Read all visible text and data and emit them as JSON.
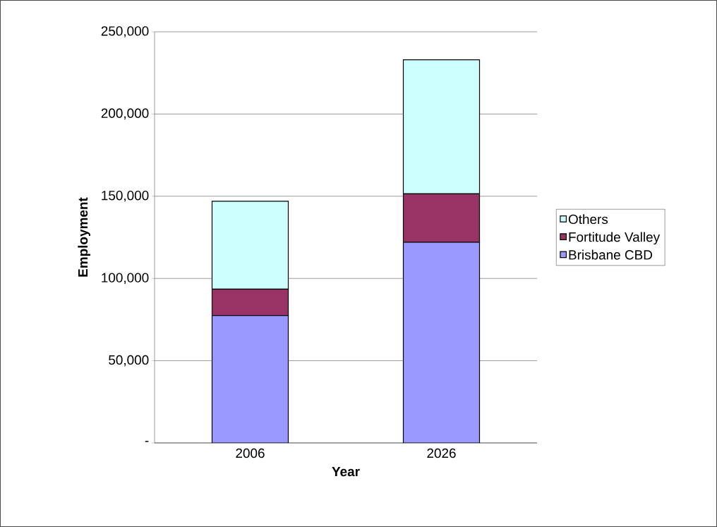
{
  "chart_data": {
    "type": "bar",
    "stacked": true,
    "xlabel": "Year",
    "ylabel": "Employment",
    "categories": [
      "2006",
      "2026"
    ],
    "series": [
      {
        "name": "Brisbane CBD",
        "color": "#9999ff",
        "values": [
          77500,
          122000
        ]
      },
      {
        "name": "Fortitude Valley",
        "color": "#993366",
        "values": [
          16000,
          29500
        ]
      },
      {
        "name": "Others",
        "color": "#ccffff",
        "values": [
          53500,
          81500
        ]
      }
    ],
    "ylim": [
      0,
      250000
    ],
    "yticks": [
      {
        "value": 0,
        "label": "-"
      },
      {
        "value": 50000,
        "label": "50,000"
      },
      {
        "value": 100000,
        "label": "100,000"
      },
      {
        "value": 150000,
        "label": "150,000"
      },
      {
        "value": 200000,
        "label": "200,000"
      },
      {
        "value": 250000,
        "label": "250,000"
      }
    ],
    "grid": "y",
    "legend": "right"
  }
}
